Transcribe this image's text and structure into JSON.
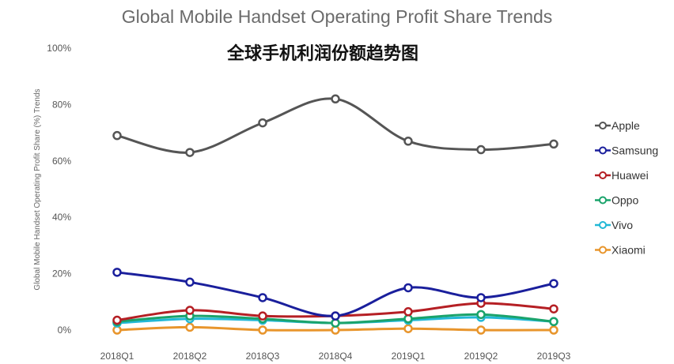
{
  "chart_data": {
    "type": "line",
    "title": "Global Mobile Handset Operating Profit Share Trends",
    "subtitle": "全球手机利润份额趋势图",
    "xlabel": "",
    "ylabel": "Global Mobile Handset Operating Profit Share (%) Trends",
    "categories": [
      "2018Q1",
      "2018Q2",
      "2018Q3",
      "2018Q4",
      "2019Q1",
      "2019Q2",
      "2019Q3"
    ],
    "ylim": [
      0,
      100
    ],
    "yticks": [
      0,
      20,
      40,
      60,
      80,
      100
    ],
    "ytick_labels": [
      "0%",
      "20%",
      "40%",
      "60%",
      "80%",
      "100%"
    ],
    "grid": false,
    "legend_position": "right",
    "series": [
      {
        "name": "Apple",
        "color": "#555555",
        "values": [
          69,
          63,
          73.5,
          82,
          67,
          64,
          66
        ]
      },
      {
        "name": "Samsung",
        "color": "#1a1f9c",
        "values": [
          20.5,
          17,
          11.5,
          5,
          15,
          11.5,
          16.5
        ]
      },
      {
        "name": "Huawei",
        "color": "#b51f24",
        "values": [
          3.5,
          7,
          5,
          5,
          6.5,
          9.5,
          7.5
        ]
      },
      {
        "name": "Oppo",
        "color": "#1aa36b",
        "values": [
          3,
          5,
          4,
          2.5,
          4,
          5.5,
          3
        ]
      },
      {
        "name": "Vivo",
        "color": "#22b8d6",
        "values": [
          2.5,
          4,
          3.5,
          2.5,
          3.5,
          4.5,
          3
        ]
      },
      {
        "name": "Xiaomi",
        "color": "#e8952c",
        "values": [
          0,
          1,
          0,
          0,
          0.5,
          0,
          0
        ]
      }
    ]
  }
}
